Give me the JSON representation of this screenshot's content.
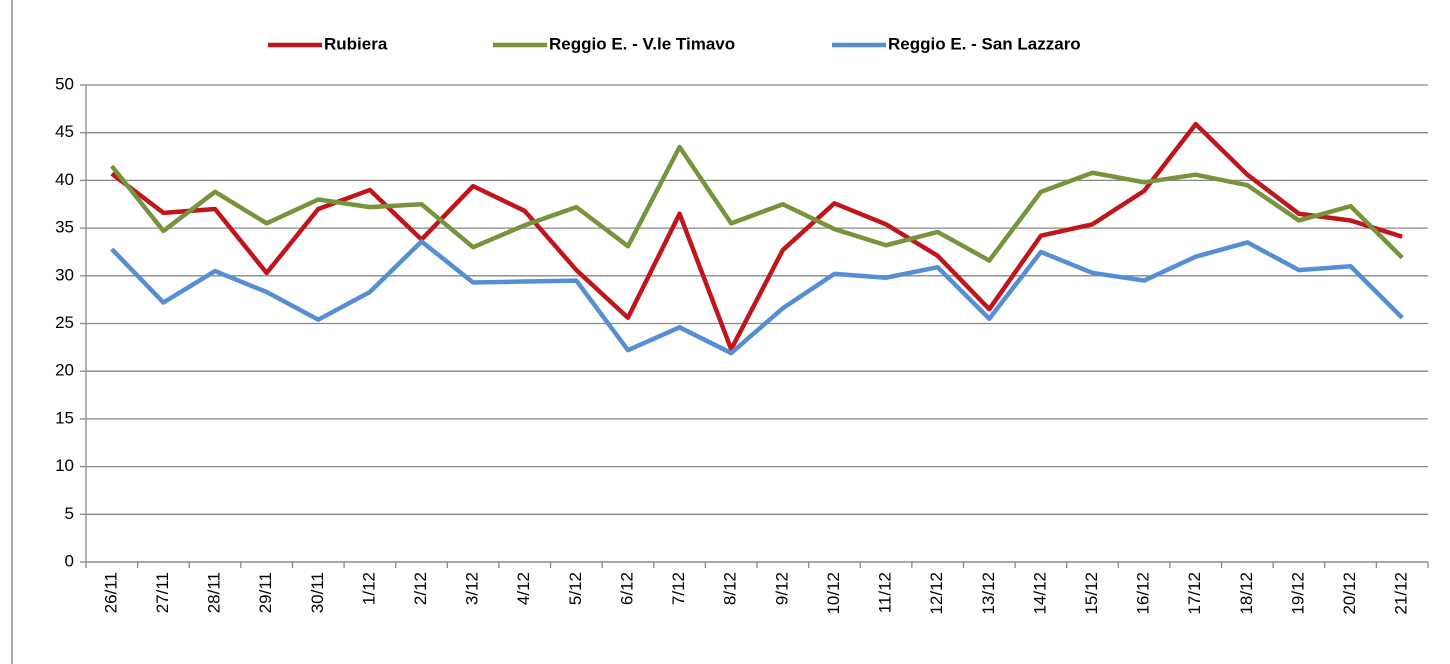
{
  "chart_data": {
    "type": "line",
    "categories": [
      "26/11",
      "27/11",
      "28/11",
      "29/11",
      "30/11",
      "1/12",
      "2/12",
      "3/12",
      "4/12",
      "5/12",
      "6/12",
      "7/12",
      "8/12",
      "9/12",
      "10/12",
      "11/12",
      "12/12",
      "13/12",
      "14/12",
      "15/12",
      "16/12",
      "17/12",
      "18/12",
      "19/12",
      "20/12",
      "21/12"
    ],
    "series": [
      {
        "name": "Rubiera",
        "color": "#c0161b",
        "values": [
          40.7,
          36.6,
          37.0,
          30.3,
          37.0,
          39.0,
          33.8,
          39.4,
          36.8,
          30.6,
          25.6,
          36.5,
          22.3,
          32.7,
          37.6,
          35.4,
          32.1,
          26.5,
          34.2,
          35.4,
          38.9,
          45.9,
          40.6,
          36.5,
          35.8,
          34.1
        ]
      },
      {
        "name": "Reggio E. - V.le Timavo",
        "color": "#77933c",
        "values": [
          41.5,
          34.7,
          38.8,
          35.5,
          38.0,
          37.2,
          37.5,
          33.0,
          35.3,
          37.2,
          33.1,
          43.5,
          35.5,
          37.5,
          34.9,
          33.2,
          34.6,
          31.6,
          38.8,
          40.8,
          39.8,
          40.6,
          39.5,
          35.8,
          37.3,
          31.9
        ]
      },
      {
        "name": "Reggio E. - San Lazzaro",
        "color": "#558ed5",
        "values": [
          32.8,
          27.2,
          30.5,
          28.3,
          25.4,
          28.3,
          33.6,
          29.3,
          29.4,
          29.5,
          22.2,
          24.6,
          21.9,
          26.6,
          30.2,
          29.8,
          30.9,
          25.5,
          32.5,
          30.3,
          29.5,
          32.0,
          33.5,
          30.6,
          31.0,
          25.6
        ]
      }
    ],
    "ylim": [
      0,
      50
    ],
    "yticks": [
      0,
      5,
      10,
      15,
      20,
      25,
      30,
      35,
      40,
      45,
      50
    ],
    "grid": true,
    "legend": "top"
  }
}
